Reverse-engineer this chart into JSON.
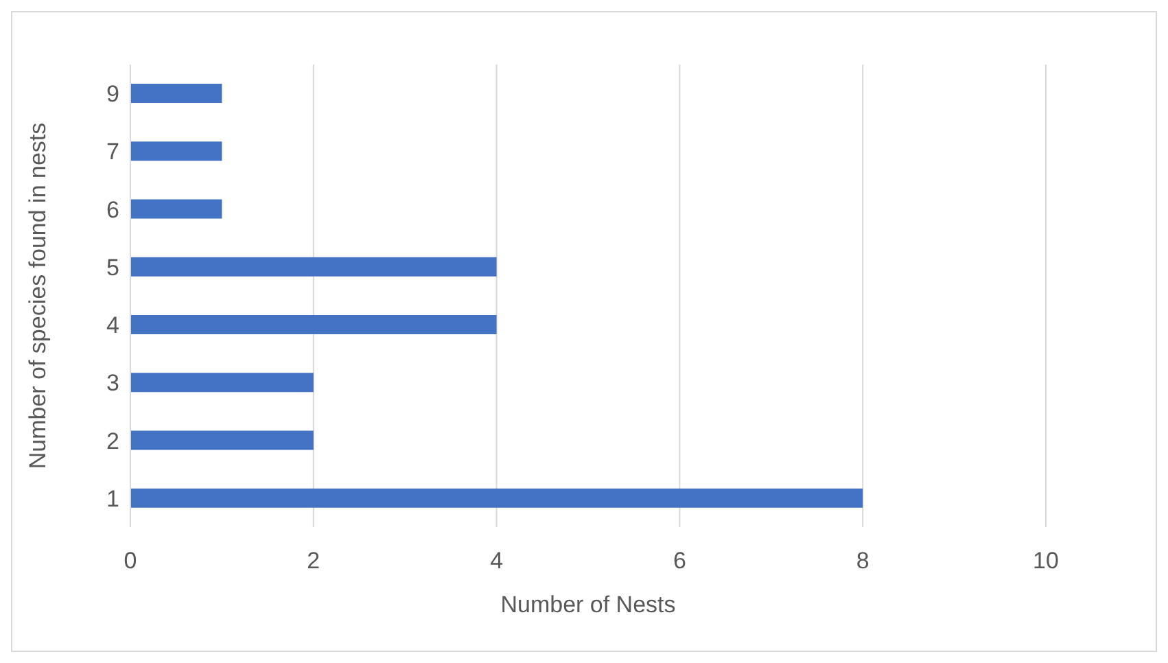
{
  "chart_data": {
    "type": "bar",
    "orientation": "horizontal",
    "xlabel": "Number of Nests",
    "ylabel": "Number of species found in nests",
    "categories": [
      "9",
      "7",
      "6",
      "5",
      "4",
      "3",
      "2",
      "1"
    ],
    "values": [
      1,
      1,
      1,
      4,
      4,
      2,
      2,
      8
    ],
    "color": "#4472c4",
    "xlim": [
      0,
      10
    ],
    "xticks": [
      0,
      2,
      4,
      6,
      8,
      10
    ],
    "grid": "x"
  }
}
